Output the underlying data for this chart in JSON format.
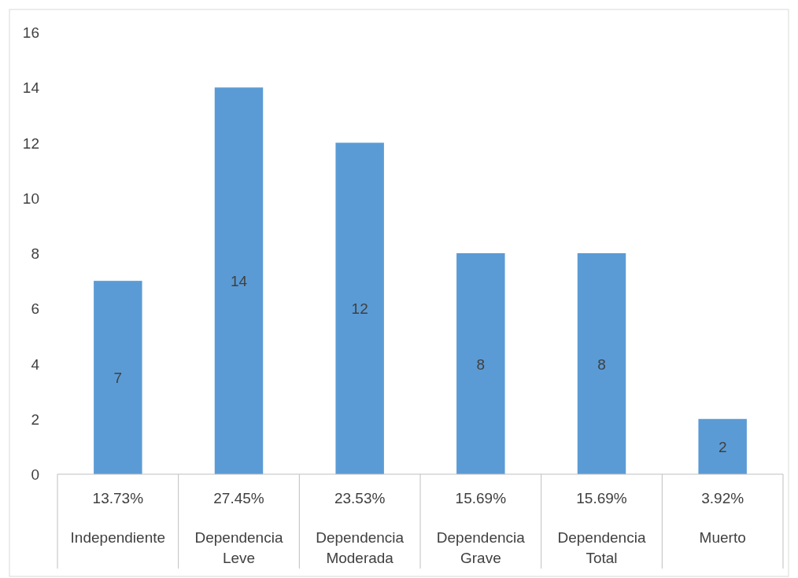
{
  "chart_data": {
    "type": "bar",
    "categories": [
      "Independiente",
      "Dependencia Leve",
      "Dependencia Moderada",
      "Dependencia Grave",
      "Dependencia Total",
      "Muerto"
    ],
    "values": [
      7,
      14,
      12,
      8,
      8,
      2
    ],
    "color": "#5b9bd5",
    "ylim": [
      0,
      16
    ],
    "yticks": [
      0,
      2,
      4,
      6,
      8,
      10,
      12,
      14,
      16
    ],
    "data_labels": true,
    "grid": false,
    "annotations": [
      "13.73%",
      "27.45%",
      "23.53%",
      "15.69%",
      "15.69%",
      "3.92%"
    ]
  }
}
